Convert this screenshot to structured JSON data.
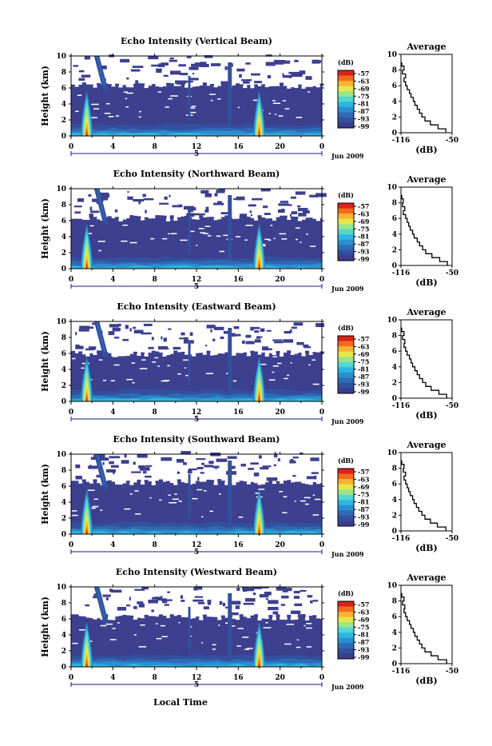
{
  "figure": {
    "xlabel": "Local Time",
    "colors": {
      "background_echo": "#3d3f8f",
      "colormap": [
        "#3a3c8c",
        "#33509e",
        "#2f6ab4",
        "#2a8fd0",
        "#2fb6e0",
        "#55d6d0",
        "#9be58a",
        "#e6e84a",
        "#f9b233",
        "#f26a1f",
        "#d8241b"
      ]
    }
  },
  "chart_data": [
    {
      "type": "heatmap",
      "title": "Echo Intensity (Vertical Beam)",
      "ylabel": "Height (km)",
      "xlabel": "",
      "xlim": [
        0,
        24
      ],
      "ylim": [
        0,
        10
      ],
      "x_ticks": [
        "0",
        "4",
        "8",
        "12",
        "16",
        "20",
        "0"
      ],
      "y_ticks": [
        "0",
        "2",
        "4",
        "6",
        "8",
        "10"
      ],
      "date_label": "5",
      "month_label": "Jun 2009",
      "colorbar": {
        "unit": "(dB)",
        "ticks": [
          "-57",
          "-63",
          "-69",
          "-75",
          "-81",
          "-87",
          "-93",
          "-99"
        ]
      },
      "features": {
        "echo_top_km": 6.3,
        "upper_echo_top_km": 9.5,
        "storm_times_h": [
          1.5,
          18.0
        ],
        "early_streak_h": 2.5
      },
      "average_profile": {
        "title": "Average",
        "xlabel": "(dB)",
        "ylabel": "",
        "xlim": [
          -116,
          -50
        ],
        "x_ticks": [
          "-116",
          "-50"
        ],
        "y_ticks": [
          "0",
          "2",
          "4",
          "6",
          "8",
          "10"
        ],
        "heights_km": [
          0.0,
          0.5,
          1.0,
          1.5,
          2.0,
          2.5,
          3.0,
          3.5,
          4.0,
          4.5,
          5.0,
          5.5,
          6.0,
          6.5,
          7.0,
          7.5,
          8.0,
          8.5
        ],
        "values_db": [
          -58,
          -68,
          -78,
          -85,
          -89,
          -92,
          -95,
          -98,
          -100,
          -103,
          -105,
          -108,
          -110,
          -112,
          -110,
          -114,
          -112,
          -115
        ]
      }
    },
    {
      "type": "heatmap",
      "title": "Echo Intensity (Northward Beam)",
      "ylabel": "Height (km)",
      "xlabel": "",
      "xlim": [
        0,
        24
      ],
      "ylim": [
        0,
        10
      ],
      "x_ticks": [
        "0",
        "4",
        "8",
        "12",
        "16",
        "20",
        "0"
      ],
      "y_ticks": [
        "0",
        "2",
        "4",
        "6",
        "8",
        "10"
      ],
      "date_label": "5",
      "month_label": "Jun 2009",
      "colorbar": {
        "unit": "(dB)",
        "ticks": [
          "-57",
          "-63",
          "-69",
          "-75",
          "-81",
          "-87",
          "-93",
          "-99"
        ]
      },
      "features": {
        "echo_top_km": 6.3,
        "upper_echo_top_km": 9.5,
        "storm_times_h": [
          1.5,
          18.0
        ],
        "early_streak_h": 2.5
      },
      "average_profile": {
        "title": "Average",
        "xlabel": "(dB)",
        "ylabel": "",
        "xlim": [
          -116,
          -50
        ],
        "x_ticks": [
          "-116",
          "-50"
        ],
        "y_ticks": [
          "0",
          "2",
          "4",
          "6",
          "8",
          "10"
        ],
        "heights_km": [
          0.0,
          0.5,
          1.0,
          1.5,
          2.0,
          2.5,
          3.0,
          3.5,
          4.0,
          4.5,
          5.0,
          5.5,
          6.0,
          6.5,
          7.0,
          7.5,
          8.0,
          8.5
        ],
        "values_db": [
          -56,
          -66,
          -76,
          -84,
          -88,
          -92,
          -95,
          -99,
          -101,
          -104,
          -106,
          -108,
          -110,
          -113,
          -111,
          -114,
          -113,
          -115
        ]
      }
    },
    {
      "type": "heatmap",
      "title": "Echo Intensity (Eastward Beam)",
      "ylabel": "Height (km)",
      "xlabel": "",
      "xlim": [
        0,
        24
      ],
      "ylim": [
        0,
        10
      ],
      "x_ticks": [
        "0",
        "4",
        "8",
        "12",
        "16",
        "20",
        "0"
      ],
      "y_ticks": [
        "0",
        "2",
        "4",
        "6",
        "8",
        "10"
      ],
      "date_label": "5",
      "month_label": "Jun 2009",
      "colorbar": {
        "unit": "(dB)",
        "ticks": [
          "-57",
          "-63",
          "-69",
          "-75",
          "-81",
          "-87",
          "-93",
          "-99"
        ]
      },
      "features": {
        "echo_top_km": 6.0,
        "upper_echo_top_km": 9.5,
        "storm_times_h": [
          1.5,
          18.0
        ],
        "early_streak_h": 2.5
      },
      "average_profile": {
        "title": "Average",
        "xlabel": "(dB)",
        "ylabel": "",
        "xlim": [
          -116,
          -50
        ],
        "x_ticks": [
          "-116",
          "-50"
        ],
        "y_ticks": [
          "0",
          "2",
          "4",
          "6",
          "8",
          "10"
        ],
        "heights_km": [
          0.0,
          0.5,
          1.0,
          1.5,
          2.0,
          2.5,
          3.0,
          3.5,
          4.0,
          4.5,
          5.0,
          5.5,
          6.0,
          6.5,
          7.0,
          7.5,
          8.0,
          8.5
        ],
        "values_db": [
          -57,
          -67,
          -77,
          -84,
          -88,
          -92,
          -95,
          -98,
          -101,
          -103,
          -105,
          -108,
          -110,
          -112,
          -111,
          -114,
          -112,
          -115
        ]
      }
    },
    {
      "type": "heatmap",
      "title": "Echo Intensity (Southward Beam)",
      "ylabel": "Height (km)",
      "xlabel": "",
      "xlim": [
        0,
        24
      ],
      "ylim": [
        0,
        10
      ],
      "x_ticks": [
        "0",
        "4",
        "8",
        "12",
        "16",
        "20",
        "0"
      ],
      "y_ticks": [
        "0",
        "2",
        "4",
        "6",
        "8",
        "10"
      ],
      "date_label": "5",
      "month_label": "Jun 2009",
      "colorbar": {
        "unit": "(dB)",
        "ticks": [
          "-57",
          "-63",
          "-69",
          "-75",
          "-81",
          "-87",
          "-93",
          "-99"
        ]
      },
      "features": {
        "echo_top_km": 6.5,
        "upper_echo_top_km": 9.5,
        "storm_times_h": [
          1.5,
          18.0
        ],
        "early_streak_h": 2.5
      },
      "average_profile": {
        "title": "Average",
        "xlabel": "(dB)",
        "ylabel": "",
        "xlim": [
          -116,
          -50
        ],
        "x_ticks": [
          "-116",
          "-50"
        ],
        "y_ticks": [
          "0",
          "2",
          "4",
          "6",
          "8",
          "10"
        ],
        "heights_km": [
          0.0,
          0.5,
          1.0,
          1.5,
          2.0,
          2.5,
          3.0,
          3.5,
          4.0,
          4.5,
          5.0,
          5.5,
          6.0,
          6.5,
          7.0,
          7.5,
          8.0,
          8.5
        ],
        "values_db": [
          -58,
          -69,
          -78,
          -85,
          -89,
          -93,
          -96,
          -99,
          -101,
          -104,
          -106,
          -108,
          -110,
          -112,
          -110,
          -113,
          -112,
          -115
        ]
      }
    },
    {
      "type": "heatmap",
      "title": "Echo Intensity (Westward Beam)",
      "ylabel": "Height (km)",
      "xlabel": "",
      "xlim": [
        0,
        24
      ],
      "ylim": [
        0,
        10
      ],
      "x_ticks": [
        "0",
        "4",
        "8",
        "12",
        "16",
        "20",
        "0"
      ],
      "y_ticks": [
        "0",
        "2",
        "4",
        "6",
        "8",
        "10"
      ],
      "date_label": "5",
      "month_label": "Jun 2009",
      "colorbar": {
        "unit": "(dB)",
        "ticks": [
          "-57",
          "-63",
          "-69",
          "-75",
          "-81",
          "-87",
          "-93",
          "-99"
        ]
      },
      "features": {
        "echo_top_km": 6.2,
        "upper_echo_top_km": 9.5,
        "storm_times_h": [
          1.5,
          18.0
        ],
        "early_streak_h": 2.5
      },
      "average_profile": {
        "title": "Average",
        "xlabel": "(dB)",
        "ylabel": "",
        "xlim": [
          -116,
          -50
        ],
        "x_ticks": [
          "-116",
          "-50"
        ],
        "y_ticks": [
          "0",
          "2",
          "4",
          "6",
          "8",
          "10"
        ],
        "heights_km": [
          0.0,
          0.5,
          1.0,
          1.5,
          2.0,
          2.5,
          3.0,
          3.5,
          4.0,
          4.5,
          5.0,
          5.5,
          6.0,
          6.5,
          7.0,
          7.5,
          8.0,
          8.5
        ],
        "values_db": [
          -57,
          -68,
          -77,
          -85,
          -89,
          -92,
          -95,
          -98,
          -100,
          -103,
          -105,
          -108,
          -110,
          -112,
          -111,
          -114,
          -112,
          -115
        ]
      }
    }
  ]
}
